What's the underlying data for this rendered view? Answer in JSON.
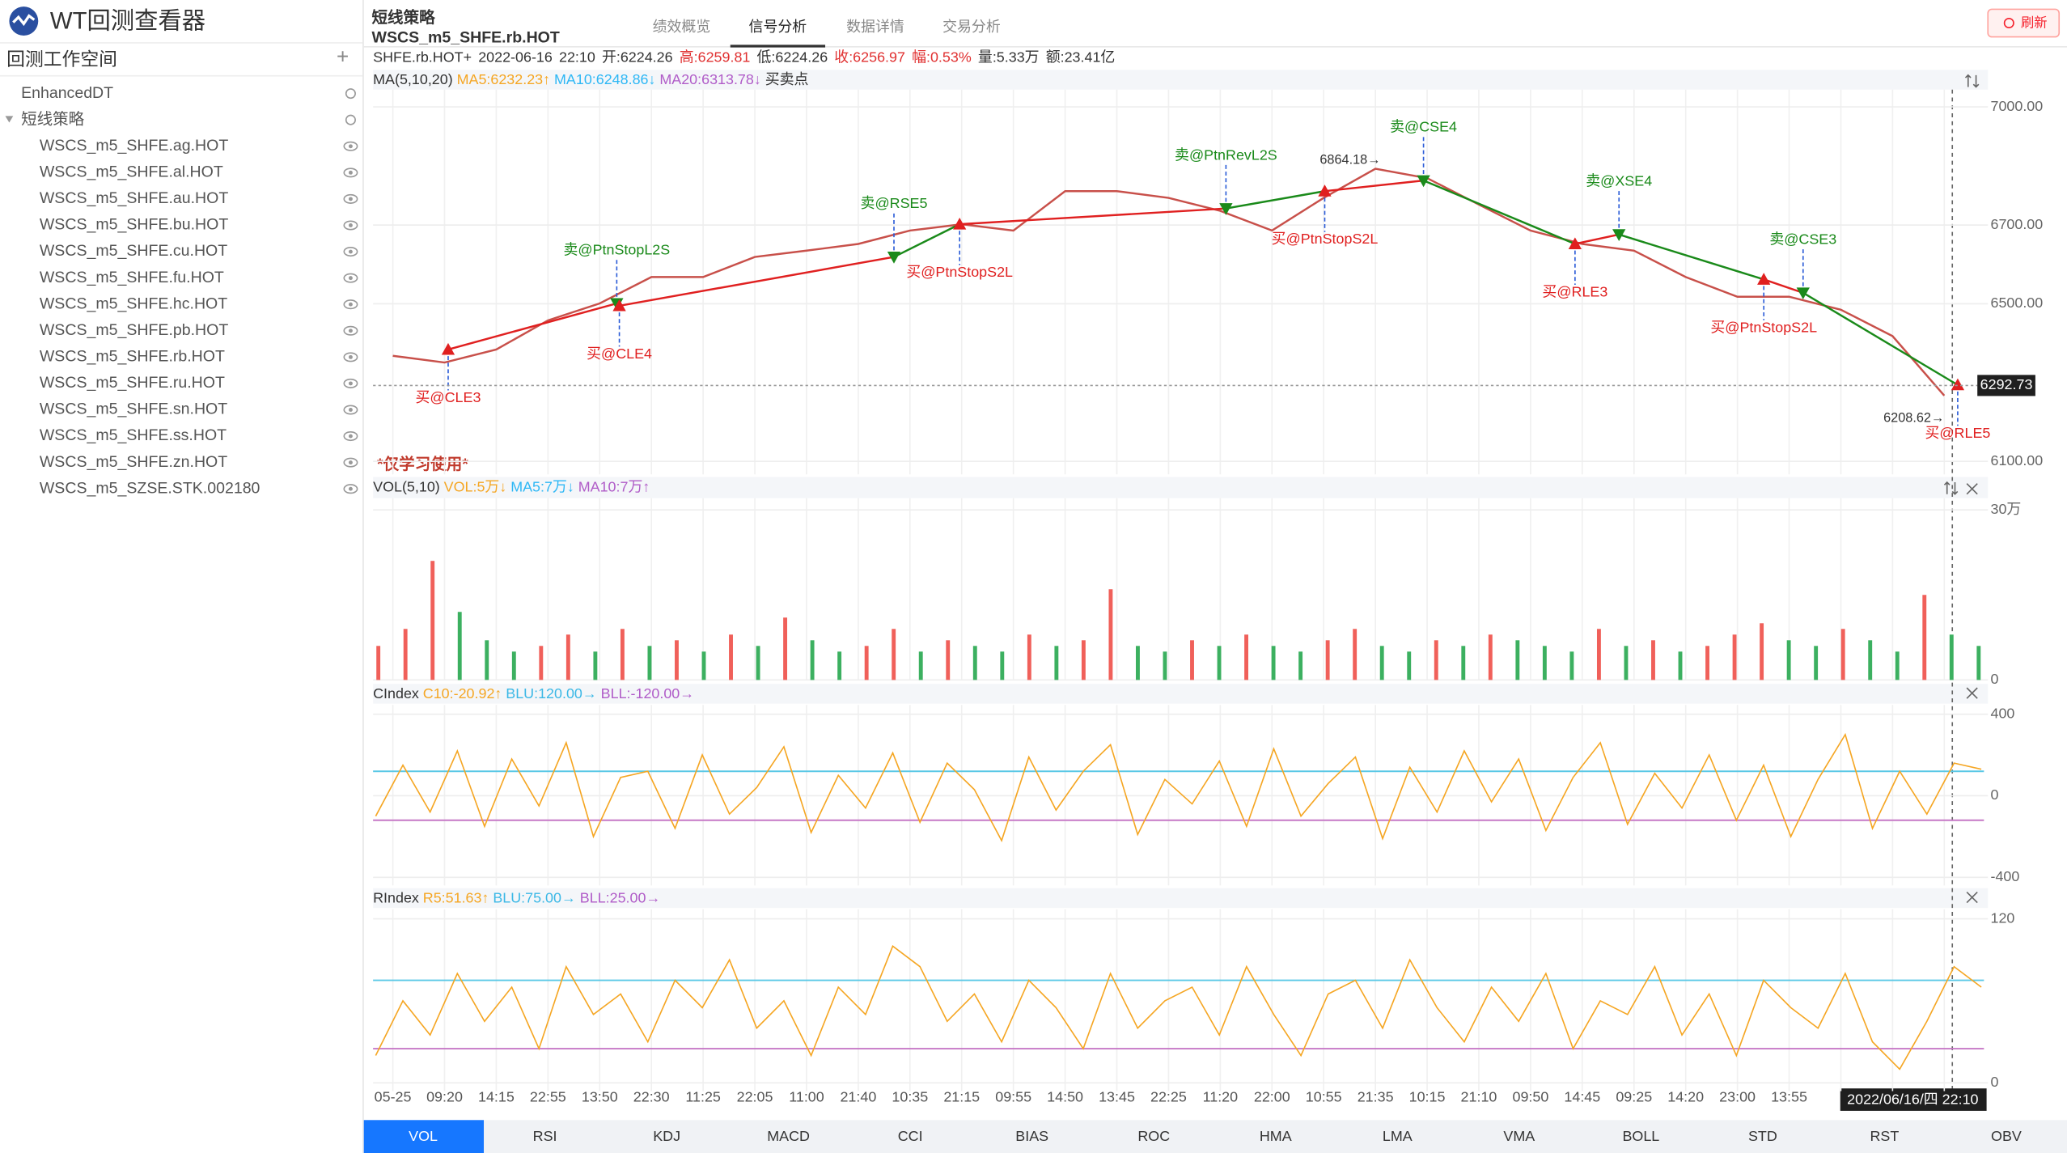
{
  "app": {
    "title": "WT回测查看器",
    "workspace": "回测工作空间",
    "add": "+"
  },
  "tree": {
    "items": [
      {
        "label": "EnhancedDT"
      },
      {
        "label": "短线策略",
        "children": [
          "WSCS_m5_SHFE.ag.HOT",
          "WSCS_m5_SHFE.al.HOT",
          "WSCS_m5_SHFE.au.HOT",
          "WSCS_m5_SHFE.bu.HOT",
          "WSCS_m5_SHFE.cu.HOT",
          "WSCS_m5_SHFE.fu.HOT",
          "WSCS_m5_SHFE.hc.HOT",
          "WSCS_m5_SHFE.pb.HOT",
          "WSCS_m5_SHFE.rb.HOT",
          "WSCS_m5_SHFE.ru.HOT",
          "WSCS_m5_SHFE.sn.HOT",
          "WSCS_m5_SHFE.ss.HOT",
          "WSCS_m5_SHFE.zn.HOT",
          "WSCS_m5_SZSE.STK.002180"
        ]
      }
    ]
  },
  "header": {
    "strategy": "短线策略",
    "code": "WSCS_m5_SHFE.rb.HOT",
    "refresh": "刷新",
    "tabs": [
      "绩效概览",
      "信号分析",
      "数据详情",
      "交易分析"
    ],
    "active_tab": 1
  },
  "quote": {
    "fields": [
      {
        "text": "SHFE.rb.HOT+",
        "color": "#333333"
      },
      {
        "text": "2022-06-16",
        "color": "#333333"
      },
      {
        "text": "22:10",
        "color": "#333333"
      },
      {
        "text": "开:6224.26",
        "color": "#333333"
      },
      {
        "text": "高:6259.81",
        "color": "#e03030"
      },
      {
        "text": "低:6224.26",
        "color": "#333333"
      },
      {
        "text": "收:6256.97",
        "color": "#e03030"
      },
      {
        "text": "幅:0.53%",
        "color": "#e03030"
      },
      {
        "text": "量:5.33万",
        "color": "#333333"
      },
      {
        "text": "额:23.41亿",
        "color": "#333333"
      }
    ]
  },
  "watermark": "*仅学习使用*",
  "x_axis": {
    "cursor": "2022/06/16/四  22:10"
  },
  "indicator_tabs": {
    "items": [
      "VOL",
      "RSI",
      "KDJ",
      "MACD",
      "CCI",
      "BIAS",
      "ROC",
      "HMA",
      "LMA",
      "VMA",
      "BOLL",
      "STD",
      "RST",
      "OBV"
    ],
    "active": 0
  },
  "chart_data": [
    {
      "type": "line",
      "legend": [
        {
          "text": "MA(5,10,20)",
          "color": "#333333"
        },
        {
          "text": "MA5:6232.23↑",
          "color": "#f5a623"
        },
        {
          "text": "MA10:6248.86↓",
          "color": "#2db7f5"
        },
        {
          "text": "MA20:6313.78↓",
          "color": "#b05cc8"
        },
        {
          "text": "买卖点",
          "color": "#333333"
        }
      ],
      "categories": [
        "05-25",
        "09:20",
        "14:15",
        "22:55",
        "13:50",
        "22:30",
        "11:25",
        "22:05",
        "11:00",
        "21:40",
        "10:35",
        "21:15",
        "09:55",
        "14:50",
        "13:45",
        "22:25",
        "11:20",
        "22:00",
        "10:55",
        "21:35",
        "10:15",
        "21:10",
        "09:50",
        "14:45",
        "09:25",
        "14:20",
        "23:00",
        "13:55",
        null,
        null,
        null
      ],
      "values": [
        6368,
        6351,
        6384,
        6458,
        6501,
        6568,
        6568,
        6619,
        6635,
        6652,
        6686,
        6702,
        6686,
        6786,
        6786,
        6769,
        6736,
        6686,
        6769,
        6843,
        6819,
        6752,
        6686,
        6652,
        6635,
        6568,
        6518,
        6518,
        6485,
        6418,
        6267
      ],
      "color": "#c8504a",
      "ylim": [
        6067,
        7094
      ],
      "yticks": [
        {
          "value": 7000,
          "label": "7000.00"
        },
        {
          "value": 6700,
          "label": "6700.00"
        },
        {
          "value": 6500,
          "label": "6500.00"
        },
        {
          "value": 6100,
          "label": "6100.00"
        }
      ],
      "grid": true,
      "signals": [
        {
          "label": "买@CLE3",
          "side": "buy",
          "index": 1.07,
          "price": 6384
        },
        {
          "label": "卖@PtnStopL2S",
          "side": "sell",
          "index": 4.33,
          "price": 6501
        },
        {
          "label": "买@CLE4",
          "side": "buy",
          "index": 4.38,
          "price": 6495
        },
        {
          "label": "卖@RSE5",
          "side": "sell",
          "index": 9.69,
          "price": 6619
        },
        {
          "label": "买@PtnStopS2L",
          "side": "buy",
          "index": 10.96,
          "price": 6702
        },
        {
          "label": "卖@PtnRevL2S",
          "side": "sell",
          "index": 16.11,
          "price": 6742
        },
        {
          "label": "买@PtnStopS2L",
          "side": "buy",
          "index": 18.02,
          "price": 6786
        },
        {
          "label": "卖@CSE4",
          "side": "sell",
          "index": 19.93,
          "price": 6813
        },
        {
          "label": "买@RLE3",
          "side": "buy",
          "index": 22.86,
          "price": 6652
        },
        {
          "label": "卖@XSE4",
          "side": "sell",
          "index": 23.71,
          "price": 6676
        },
        {
          "label": "买@PtnStopS2L",
          "side": "buy",
          "index": 26.51,
          "price": 6562
        },
        {
          "label": "卖@CSE3",
          "side": "sell",
          "index": 27.27,
          "price": 6528
        },
        {
          "label": "买@RLE5",
          "side": "buy",
          "index": 30.26,
          "price": 6294
        }
      ],
      "buy_color": "#e02020",
      "sell_color": "#1a8a1a",
      "extremes": [
        {
          "value": 6864.18,
          "label": "6864.18→",
          "index": 19.1
        },
        {
          "value": 6208.62,
          "label": "6208.62→",
          "index": 30.0
        }
      ],
      "last": {
        "value": 6292.73,
        "label": "6292.73"
      }
    },
    {
      "type": "bar",
      "legend": [
        {
          "text": "VOL(5,10)",
          "color": "#333333"
        },
        {
          "text": "VOL:5万↓",
          "color": "#f5a623"
        },
        {
          "text": "MA5:7万↓",
          "color": "#2db7f5"
        },
        {
          "text": "MA10:7万↑",
          "color": "#b05cc8"
        }
      ],
      "values": [
        6,
        9,
        21,
        12,
        7,
        5,
        6,
        8,
        5,
        9,
        6,
        7,
        5,
        8,
        6,
        11,
        7,
        5,
        6,
        9,
        5,
        7,
        6,
        5,
        8,
        6,
        7,
        16,
        6,
        5,
        7,
        6,
        8,
        6,
        5,
        7,
        9,
        6,
        5,
        7,
        6,
        8,
        7,
        6,
        5,
        9,
        6,
        7,
        5,
        6,
        8,
        10,
        7,
        6,
        9,
        7,
        5,
        15,
        8,
        6
      ],
      "up_color": "#f0605a",
      "down_color": "#3cb060",
      "ylim": [
        0,
        35.1
      ],
      "yticks": [
        {
          "value": 30,
          "label": "30万"
        },
        0
      ]
    },
    {
      "type": "line",
      "legend": [
        {
          "text": "CIndex",
          "color": "#333333"
        },
        {
          "text": "C10:-20.92↑",
          "color": "#f5a623"
        },
        {
          "text": "BLU:120.00→",
          "color": "#3bb8e6"
        },
        {
          "text": "BLL:-120.00→",
          "color": "#b05cc8"
        }
      ],
      "values": [
        -100,
        150,
        -80,
        220,
        -150,
        180,
        -50,
        260,
        -200,
        90,
        120,
        -160,
        200,
        -90,
        40,
        240,
        -180,
        100,
        -60,
        210,
        -130,
        160,
        30,
        -220,
        190,
        -70,
        120,
        250,
        -190,
        80,
        -40,
        170,
        -150,
        230,
        -100,
        60,
        190,
        -210,
        140,
        -80,
        220,
        -30,
        180,
        -170,
        90,
        260,
        -140,
        110,
        -60,
        200,
        -120,
        150,
        -200,
        80,
        300,
        -160,
        120,
        -90,
        160,
        130
      ],
      "color": "#f5a623",
      "bands": [
        {
          "value": 120,
          "color": "#5bc8e6"
        },
        {
          "value": -120,
          "color": "#c678c6"
        }
      ],
      "ylim": [
        -440,
        445
      ],
      "yticks": [
        400,
        0,
        -400
      ]
    },
    {
      "type": "line",
      "legend": [
        {
          "text": "RIndex",
          "color": "#333333"
        },
        {
          "text": "R5:51.63↑",
          "color": "#f5a623"
        },
        {
          "text": "BLU:75.00→",
          "color": "#3bb8e6"
        },
        {
          "text": "BLL:25.00→",
          "color": "#b05cc8"
        }
      ],
      "values": [
        20,
        60,
        35,
        80,
        45,
        70,
        25,
        85,
        50,
        65,
        30,
        75,
        55,
        90,
        40,
        60,
        20,
        70,
        50,
        100,
        85,
        45,
        65,
        30,
        75,
        55,
        25,
        80,
        40,
        60,
        70,
        35,
        85,
        50,
        20,
        65,
        75,
        40,
        90,
        55,
        30,
        70,
        45,
        80,
        25,
        60,
        50,
        85,
        35,
        65,
        20,
        75,
        55,
        40,
        80,
        30,
        10,
        45,
        85,
        70
      ],
      "color": "#f5a623",
      "bands": [
        {
          "value": 75,
          "color": "#5bc8e6"
        },
        {
          "value": 25,
          "color": "#c678c6"
        }
      ],
      "ylim": [
        -6,
        127
      ],
      "yticks": [
        120,
        0
      ]
    }
  ]
}
